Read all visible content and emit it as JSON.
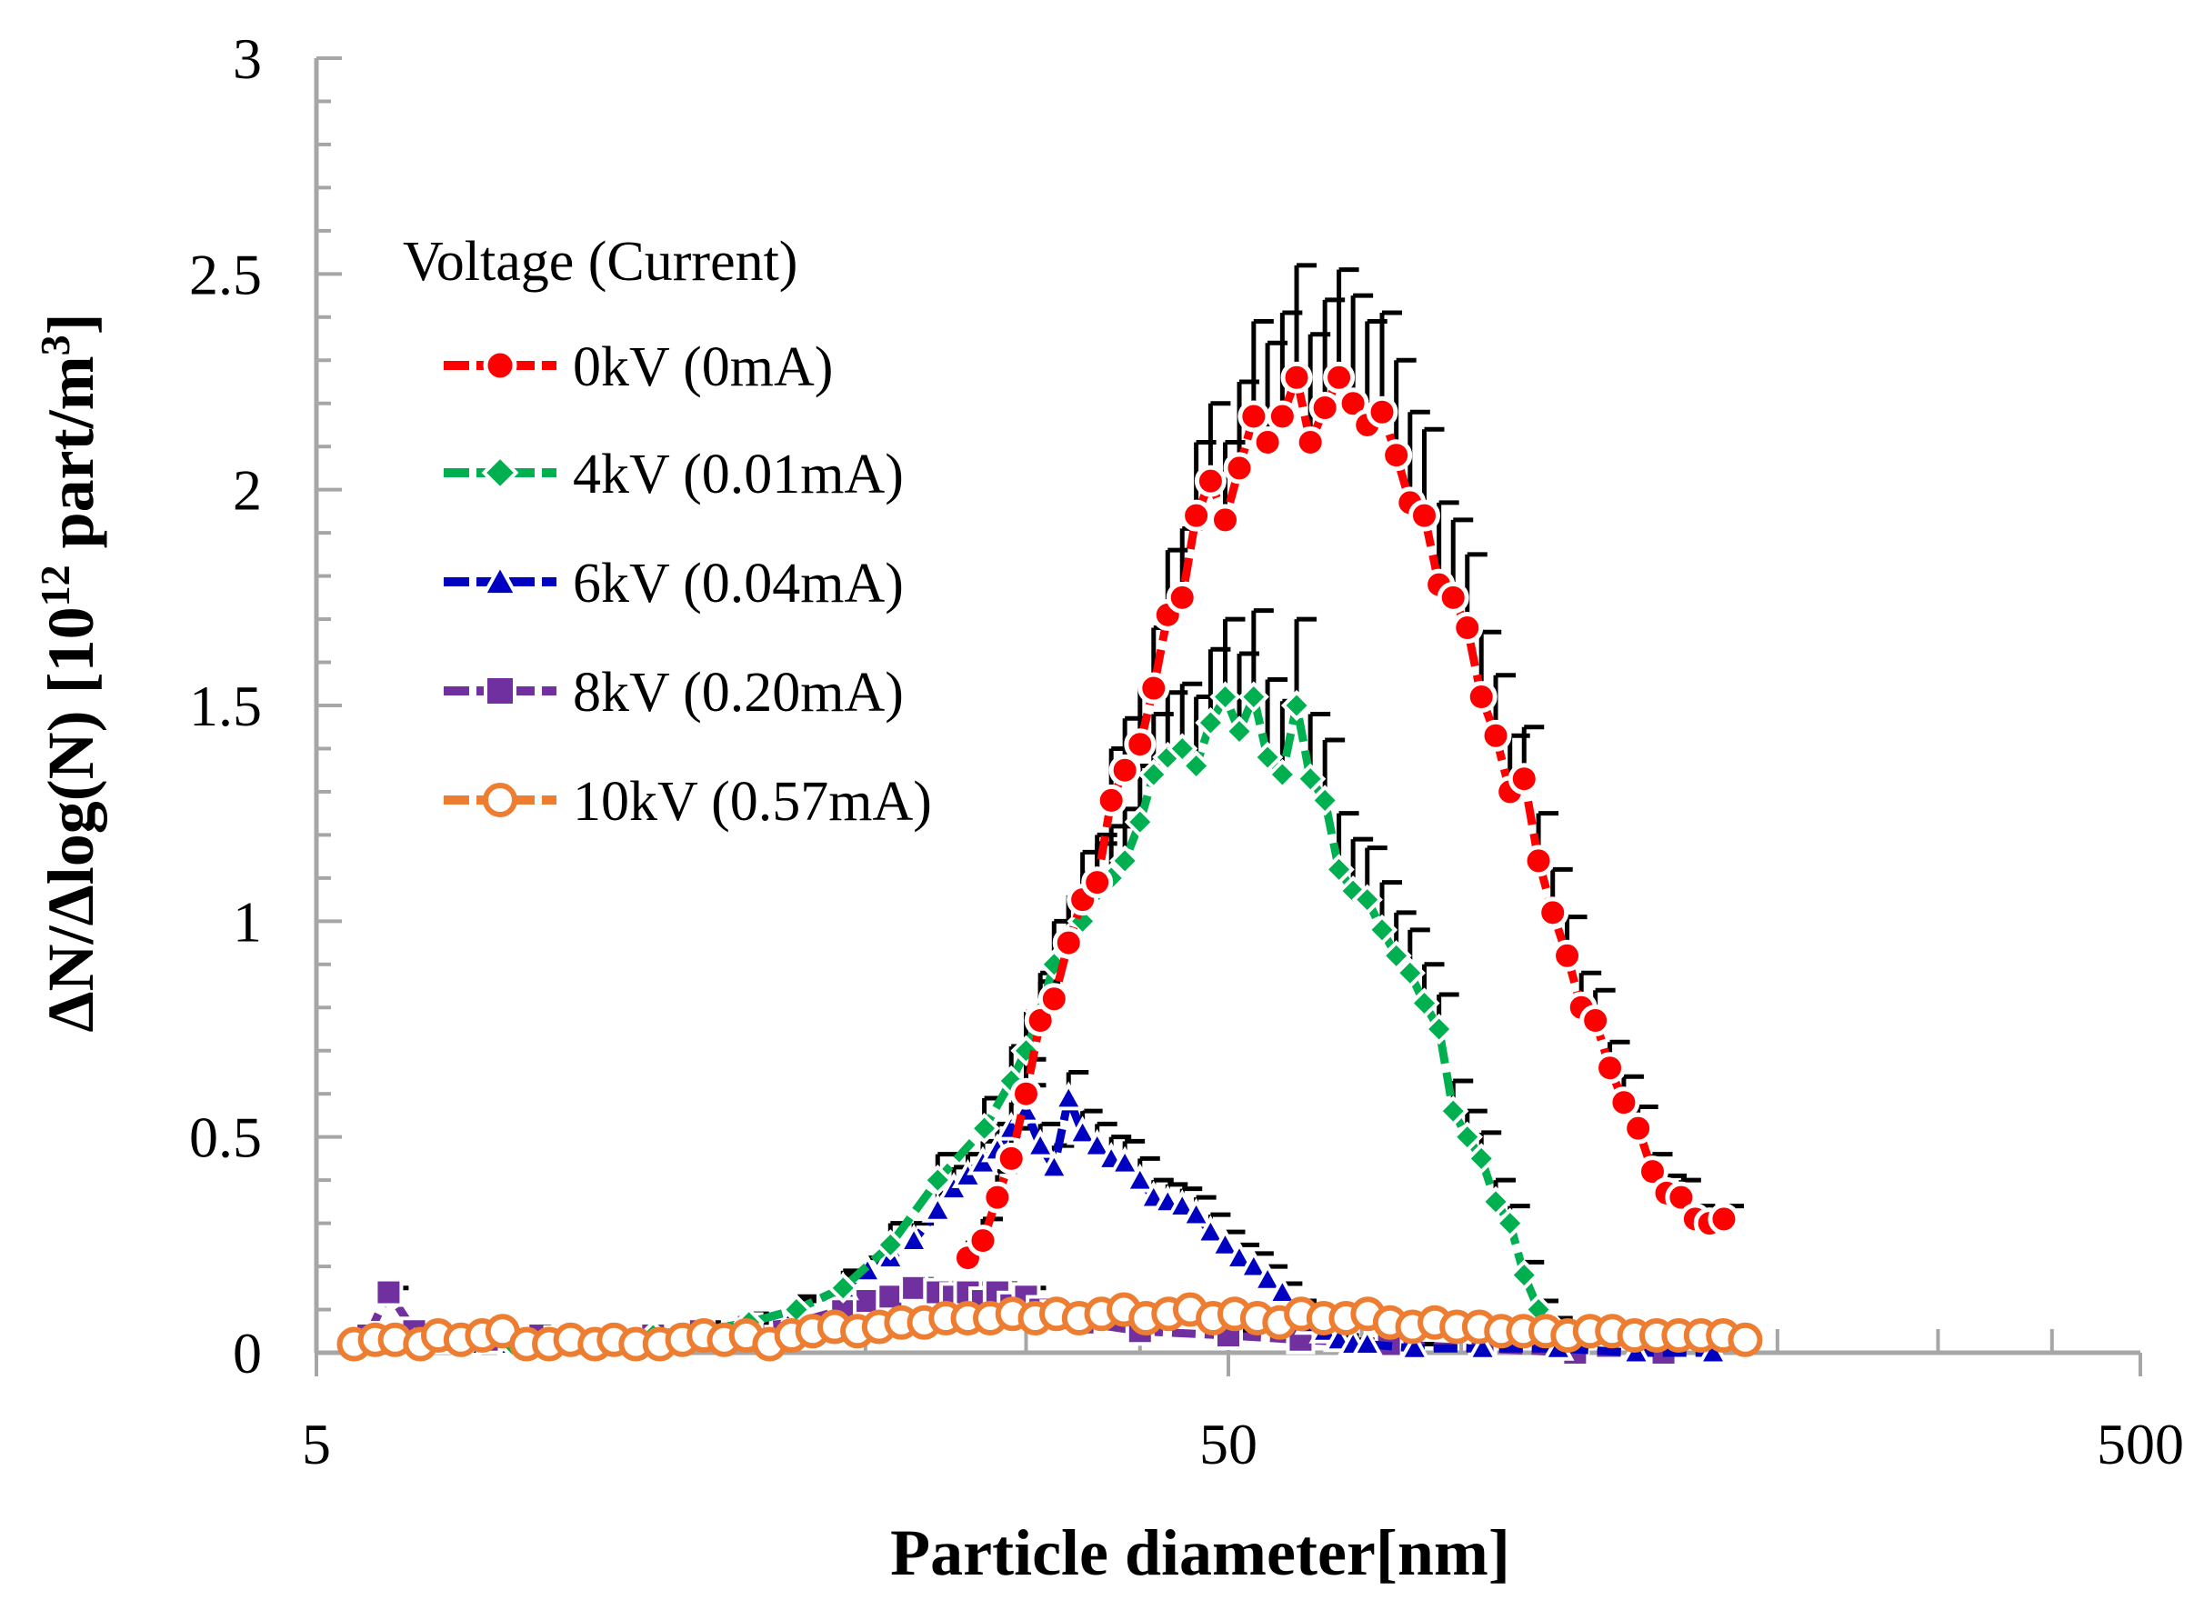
{
  "chart_data": {
    "type": "scatter",
    "title": "",
    "xlabel": "Particle diameter[nm]",
    "ylabel": {
      "main": "ΔN/Δlog(N)  [10",
      "sup1": "12",
      "mid": " part/m",
      "sup2": "3",
      "end": "]"
    },
    "xscale": "log",
    "xlim": [
      5,
      500
    ],
    "ylim": [
      0,
      3
    ],
    "xticks": [
      {
        "value": 5,
        "label": "5"
      },
      {
        "value": 50,
        "label": "50"
      },
      {
        "value": 500,
        "label": "500"
      }
    ],
    "yticks": [
      {
        "value": 0,
        "label": "0"
      },
      {
        "value": 0.5,
        "label": "0.5"
      },
      {
        "value": 1,
        "label": "1"
      },
      {
        "value": 1.5,
        "label": "1.5"
      },
      {
        "value": 2,
        "label": "2"
      },
      {
        "value": 2.5,
        "label": "2.5"
      },
      {
        "value": 3,
        "label": "3"
      }
    ],
    "legend": {
      "title": "Voltage (Current)",
      "placement": "top-left",
      "entries": [
        {
          "label": "0kV (0mA)",
          "series_index": 0
        },
        {
          "label": "4kV (0.01mA)",
          "series_index": 1
        },
        {
          "label": "6kV (0.04mA)",
          "series_index": 2
        },
        {
          "label": "8kV (0.20mA)",
          "series_index": 3
        },
        {
          "label": "10kV (0.57mA)",
          "series_index": 4
        }
      ]
    },
    "series": [
      {
        "name": "0kV (0mA)",
        "color": "#ff0000",
        "marker": "circle-filled",
        "marker_color": "#ff0000",
        "x": [
          25.9,
          26.9,
          27.9,
          28.9,
          30.0,
          31.1,
          32.2,
          33.4,
          34.6,
          35.9,
          37.2,
          38.5,
          40.0,
          41.4,
          42.9,
          44.5,
          46.1,
          47.8,
          49.6,
          51.4,
          53.3,
          55.2,
          57.3,
          59.4,
          61.5,
          63.8,
          66.1,
          68.5,
          71.0,
          73.7,
          76.4,
          79.1,
          82.0,
          85.1,
          88.2,
          91.4,
          94.7,
          98.2,
          101.8,
          105.5,
          109.4,
          113.4,
          117.6,
          121.9,
          126.3,
          131.0,
          135.7,
          140.7,
          145.9,
          151.2,
          156.8,
          162.5,
          168.5,
          174.7
        ],
        "y": [
          0.22,
          0.26,
          0.36,
          0.45,
          0.6,
          0.77,
          0.82,
          0.95,
          1.05,
          1.09,
          1.28,
          1.35,
          1.41,
          1.54,
          1.71,
          1.75,
          1.94,
          2.02,
          1.93,
          2.05,
          2.17,
          2.11,
          2.17,
          2.26,
          2.11,
          2.19,
          2.26,
          2.2,
          2.15,
          2.18,
          2.08,
          1.97,
          1.94,
          1.78,
          1.75,
          1.68,
          1.52,
          1.43,
          1.3,
          1.33,
          1.14,
          1.02,
          0.92,
          0.8,
          0.77,
          0.66,
          0.58,
          0.52,
          0.42,
          0.37,
          0.36,
          0.31,
          0.3,
          0.31
        ],
        "yerr": [
          0.04,
          0.05,
          0.06,
          0.07,
          0.08,
          0.09,
          0.1,
          0.1,
          0.11,
          0.11,
          0.12,
          0.12,
          0.13,
          0.14,
          0.15,
          0.16,
          0.17,
          0.18,
          0.18,
          0.2,
          0.22,
          0.23,
          0.24,
          0.26,
          0.25,
          0.25,
          0.25,
          0.25,
          0.24,
          0.23,
          0.22,
          0.21,
          0.2,
          0.19,
          0.18,
          0.17,
          0.15,
          0.14,
          0.13,
          0.12,
          0.11,
          0.1,
          0.09,
          0.08,
          0.07,
          0.06,
          0.06,
          0.05,
          0.04,
          0.04,
          0.04,
          0.03,
          0.03,
          0.03
        ]
      },
      {
        "name": "4kV (0.01mA)",
        "color": "#00b050",
        "marker": "diamond",
        "marker_color": "#00b050",
        "x": [
          5.7,
          6.4,
          7.3,
          8.2,
          9.2,
          10.4,
          11.7,
          13.2,
          14.9,
          16.8,
          18.9,
          21.3,
          24.0,
          27.0,
          28.9,
          30.0,
          31.1,
          32.2,
          33.4,
          34.6,
          35.9,
          37.2,
          38.5,
          40.0,
          41.4,
          42.9,
          44.5,
          46.1,
          47.8,
          49.6,
          51.4,
          53.3,
          55.2,
          57.3,
          59.4,
          61.5,
          63.8,
          66.1,
          68.5,
          71.0,
          73.7,
          76.4,
          79.1,
          82.0,
          85.1,
          88.2,
          91.4,
          94.7,
          98.2,
          101.8,
          105.5,
          109.4,
          113.4
        ],
        "y": [
          0.02,
          0.02,
          0.02,
          0.02,
          0.03,
          0.03,
          0.04,
          0.05,
          0.07,
          0.1,
          0.15,
          0.25,
          0.4,
          0.52,
          0.63,
          0.7,
          0.79,
          0.9,
          0.96,
          1.0,
          1.07,
          1.1,
          1.14,
          1.23,
          1.34,
          1.38,
          1.4,
          1.36,
          1.46,
          1.52,
          1.44,
          1.52,
          1.38,
          1.34,
          1.5,
          1.33,
          1.28,
          1.12,
          1.07,
          1.05,
          0.98,
          0.92,
          0.88,
          0.81,
          0.75,
          0.56,
          0.5,
          0.45,
          0.35,
          0.3,
          0.18,
          0.1,
          0.06
        ],
        "yerr": [
          0.01,
          0.01,
          0.01,
          0.01,
          0.01,
          0.01,
          0.01,
          0.02,
          0.02,
          0.03,
          0.04,
          0.05,
          0.06,
          0.07,
          0.08,
          0.09,
          0.09,
          0.1,
          0.1,
          0.11,
          0.11,
          0.12,
          0.12,
          0.13,
          0.14,
          0.15,
          0.15,
          0.16,
          0.17,
          0.18,
          0.18,
          0.2,
          0.18,
          0.17,
          0.2,
          0.15,
          0.14,
          0.13,
          0.12,
          0.12,
          0.11,
          0.1,
          0.1,
          0.09,
          0.08,
          0.07,
          0.06,
          0.06,
          0.05,
          0.04,
          0.03,
          0.02,
          0.02
        ]
      },
      {
        "name": "6kV (0.04mA)",
        "color": "#0000c0",
        "marker": "triangle",
        "marker_color": "#0000c0",
        "x": [
          5.7,
          6.4,
          7.3,
          8.2,
          9.2,
          10.4,
          11.7,
          13.2,
          14.9,
          16.8,
          18.9,
          20.1,
          21.3,
          22.6,
          24.0,
          25.0,
          25.9,
          26.9,
          27.9,
          28.9,
          30.0,
          31.1,
          32.2,
          33.4,
          34.6,
          35.9,
          37.2,
          38.5,
          40.0,
          41.4,
          42.9,
          44.5,
          46.1,
          47.8,
          49.6,
          51.4,
          53.3,
          55.2,
          57.3,
          59.4,
          61.5,
          63.8,
          66.1,
          68.5,
          71.0,
          80.0,
          95.0,
          115.0,
          140.0,
          170.0
        ],
        "y": [
          0.02,
          0.02,
          0.02,
          0.02,
          0.03,
          0.03,
          0.04,
          0.05,
          0.07,
          0.1,
          0.15,
          0.19,
          0.22,
          0.26,
          0.33,
          0.38,
          0.41,
          0.44,
          0.47,
          0.52,
          0.56,
          0.48,
          0.43,
          0.59,
          0.51,
          0.48,
          0.45,
          0.44,
          0.4,
          0.36,
          0.35,
          0.34,
          0.32,
          0.28,
          0.25,
          0.22,
          0.2,
          0.17,
          0.14,
          0.1,
          0.07,
          0.05,
          0.03,
          0.02,
          0.02,
          0.01,
          0.01,
          0.01,
          0.0,
          0.0
        ],
        "yerr": [
          0.01,
          0.01,
          0.01,
          0.01,
          0.01,
          0.01,
          0.01,
          0.01,
          0.02,
          0.02,
          0.03,
          0.03,
          0.03,
          0.04,
          0.04,
          0.05,
          0.05,
          0.05,
          0.06,
          0.06,
          0.06,
          0.05,
          0.05,
          0.06,
          0.05,
          0.05,
          0.05,
          0.05,
          0.05,
          0.04,
          0.04,
          0.04,
          0.04,
          0.04,
          0.03,
          0.03,
          0.03,
          0.03,
          0.02,
          0.02,
          0.02,
          0.01,
          0.01,
          0.01,
          0.01,
          0.01,
          0.01,
          0.01,
          0.0,
          0.0
        ]
      },
      {
        "name": "8kV (0.20mA)",
        "color": "#7030a0",
        "marker": "square",
        "marker_color": "#7030a0",
        "x": [
          5.7,
          6.0,
          6.4,
          6.9,
          7.3,
          7.8,
          8.2,
          8.8,
          9.2,
          10.4,
          11.7,
          13.2,
          14.9,
          16.8,
          18.9,
          20.1,
          21.3,
          22.6,
          24.0,
          25.0,
          25.9,
          26.9,
          27.9,
          28.9,
          30.0,
          31.1,
          32.2,
          33.4,
          34.6,
          40.0,
          50.0,
          60.0,
          75.0,
          95.0,
          120.0,
          150.0
        ],
        "y": [
          0.04,
          0.14,
          0.05,
          0.03,
          0.04,
          0.03,
          0.02,
          0.04,
          0.03,
          0.03,
          0.04,
          0.05,
          0.06,
          0.07,
          0.1,
          0.12,
          0.13,
          0.15,
          0.14,
          0.13,
          0.14,
          0.12,
          0.14,
          0.11,
          0.13,
          0.1,
          0.09,
          0.08,
          0.07,
          0.05,
          0.04,
          0.03,
          0.02,
          0.01,
          0.0,
          0.0
        ],
        "yerr": [
          0.01,
          0.01,
          0.01,
          0.01,
          0.01,
          0.01,
          0.01,
          0.01,
          0.01,
          0.01,
          0.01,
          0.01,
          0.01,
          0.01,
          0.02,
          0.02,
          0.02,
          0.02,
          0.02,
          0.02,
          0.02,
          0.02,
          0.02,
          0.02,
          0.02,
          0.02,
          0.01,
          0.01,
          0.01,
          0.01,
          0.01,
          0.01,
          0.01,
          0.01,
          0.0,
          0.0
        ]
      },
      {
        "name": "10kV (0.57mA)",
        "color": "#ed7d31",
        "marker": "circle-open",
        "marker_color": "#ed7d31",
        "x": [
          5.5,
          5.8,
          6.1,
          6.5,
          6.8,
          7.2,
          7.6,
          8.0,
          8.5,
          9.0,
          9.5,
          10.1,
          10.6,
          11.2,
          11.9,
          12.6,
          13.3,
          14.0,
          14.8,
          15.7,
          16.6,
          17.5,
          18.5,
          19.6,
          20.7,
          21.9,
          23.2,
          24.5,
          25.9,
          27.4,
          29.0,
          30.7,
          32.4,
          34.3,
          36.3,
          38.4,
          40.6,
          43.0,
          45.4,
          48.1,
          50.8,
          53.8,
          56.9,
          60.1,
          63.6,
          67.3,
          71.1,
          75.2,
          79.6,
          84.2,
          89.0,
          94.2,
          99.6,
          105.3,
          111.4,
          117.8,
          124.6,
          131.8,
          139.4,
          147.4,
          155.9,
          164.9,
          174.4,
          184.4
        ],
        "y": [
          0.02,
          0.03,
          0.03,
          0.02,
          0.04,
          0.03,
          0.04,
          0.05,
          0.02,
          0.02,
          0.03,
          0.02,
          0.03,
          0.02,
          0.02,
          0.03,
          0.04,
          0.03,
          0.04,
          0.02,
          0.04,
          0.05,
          0.06,
          0.05,
          0.06,
          0.07,
          0.07,
          0.08,
          0.08,
          0.08,
          0.09,
          0.08,
          0.09,
          0.08,
          0.09,
          0.1,
          0.08,
          0.09,
          0.1,
          0.08,
          0.09,
          0.08,
          0.07,
          0.09,
          0.08,
          0.08,
          0.09,
          0.07,
          0.06,
          0.07,
          0.06,
          0.06,
          0.05,
          0.05,
          0.05,
          0.04,
          0.05,
          0.05,
          0.04,
          0.04,
          0.04,
          0.04,
          0.04,
          0.03
        ],
        "yerr": []
      }
    ]
  }
}
